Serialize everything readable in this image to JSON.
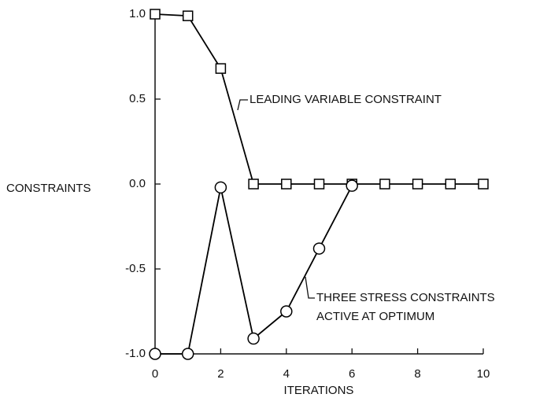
{
  "chart_data": {
    "type": "line",
    "xlabel": "ITERATIONS",
    "ylabel": "CONSTRAINTS",
    "xlim": [
      0,
      10
    ],
    "ylim": [
      -1.0,
      1.0
    ],
    "xticks": [
      0,
      2,
      4,
      6,
      8,
      10
    ],
    "yticks": [
      {
        "value": -1.0,
        "label": "-1.0"
      },
      {
        "value": -0.5,
        "label": "-0.5"
      },
      {
        "value": 0,
        "label": "0.0"
      },
      {
        "value": 0.5,
        "label": "0.5"
      },
      {
        "value": 1.0,
        "label": "1.0"
      }
    ],
    "series": [
      {
        "marker": "square",
        "color": "#000000",
        "x": [
          0,
          1,
          2,
          3,
          4,
          5,
          6,
          7,
          8,
          9,
          10
        ],
        "values": [
          1.0,
          0.99,
          0.68,
          0,
          0,
          0,
          0,
          0,
          0,
          0,
          0
        ]
      },
      {
        "marker": "circle",
        "color": "#000000",
        "x": [
          0,
          1,
          2,
          3,
          4,
          5,
          6
        ],
        "values": [
          -1.0,
          -1.0,
          -0.02,
          -0.91,
          -0.75,
          -0.38,
          -0.01
        ]
      }
    ],
    "annotations": [
      {
        "text": [
          "LEADING VARIABLE CONSTRAINT"
        ]
      },
      {
        "text": [
          "THREE STRESS CONSTRAINTS",
          "ACTIVE AT OPTIMUM"
        ]
      }
    ]
  }
}
